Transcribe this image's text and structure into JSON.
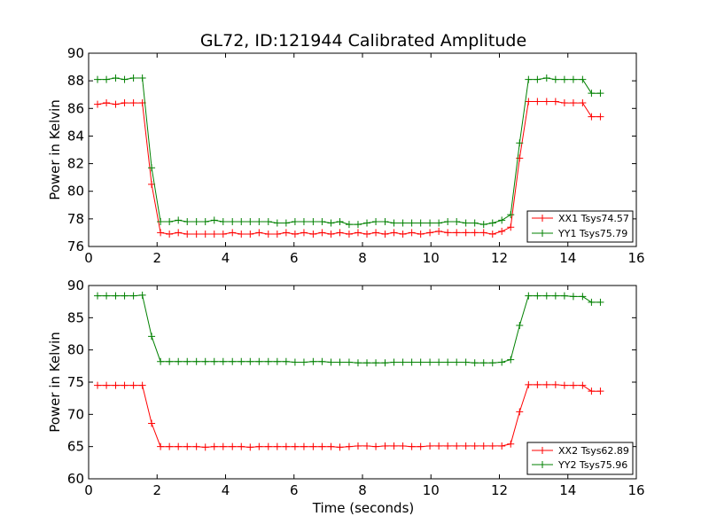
{
  "chart_data": {
    "title": "GL72, ID:121944 Calibrated Amplitude",
    "charts": [
      {
        "type": "line",
        "ylabel": "Power in Kelvin",
        "xlim": [
          0,
          16
        ],
        "ylim": [
          76,
          90
        ],
        "xticks": [
          "0",
          "2",
          "4",
          "6",
          "8",
          "10",
          "12",
          "14",
          "16"
        ],
        "yticks": [
          "76",
          "78",
          "80",
          "82",
          "84",
          "86",
          "88",
          "90"
        ],
        "grid": false,
        "legend_position": "lower-right",
        "x": [
          0.26,
          0.52,
          0.79,
          1.05,
          1.31,
          1.57,
          1.84,
          2.1,
          2.36,
          2.62,
          2.88,
          3.15,
          3.41,
          3.67,
          3.93,
          4.2,
          4.46,
          4.72,
          4.98,
          5.25,
          5.51,
          5.77,
          6.03,
          6.29,
          6.56,
          6.82,
          7.08,
          7.34,
          7.61,
          7.87,
          8.13,
          8.39,
          8.66,
          8.92,
          9.18,
          9.44,
          9.7,
          9.97,
          10.23,
          10.49,
          10.75,
          11.02,
          11.28,
          11.54,
          11.8,
          12.07,
          12.33,
          12.59,
          12.85,
          13.11,
          13.38,
          13.64,
          13.9,
          14.16,
          14.43,
          14.69,
          14.95
        ],
        "series": [
          {
            "name": "XX1 Tsys74.57",
            "color": "#ff0000",
            "values": [
              86.3,
              86.4,
              86.3,
              86.4,
              86.4,
              86.4,
              80.5,
              77.0,
              76.9,
              77.0,
              76.9,
              76.9,
              76.9,
              76.9,
              76.9,
              77.0,
              76.9,
              76.9,
              77.0,
              76.9,
              76.9,
              77.0,
              76.9,
              77.0,
              76.9,
              77.0,
              76.9,
              77.0,
              76.9,
              77.0,
              76.9,
              77.0,
              76.9,
              77.0,
              76.9,
              77.0,
              76.9,
              77.0,
              77.1,
              77.0,
              77.0,
              77.0,
              77.0,
              77.0,
              76.9,
              77.1,
              77.4,
              82.4,
              86.5,
              86.5,
              86.5,
              86.5,
              86.4,
              86.4,
              86.4,
              85.4,
              85.4
            ]
          },
          {
            "name": "YY1 Tsys75.79",
            "color": "#008000",
            "values": [
              88.1,
              88.1,
              88.2,
              88.1,
              88.2,
              88.2,
              81.7,
              77.8,
              77.8,
              77.9,
              77.8,
              77.8,
              77.8,
              77.9,
              77.8,
              77.8,
              77.8,
              77.8,
              77.8,
              77.8,
              77.7,
              77.7,
              77.8,
              77.8,
              77.8,
              77.8,
              77.7,
              77.8,
              77.6,
              77.6,
              77.7,
              77.8,
              77.8,
              77.7,
              77.7,
              77.7,
              77.7,
              77.7,
              77.7,
              77.8,
              77.8,
              77.7,
              77.7,
              77.6,
              77.7,
              77.9,
              78.3,
              83.5,
              88.1,
              88.1,
              88.2,
              88.1,
              88.1,
              88.1,
              88.1,
              87.1,
              87.1
            ]
          }
        ]
      },
      {
        "type": "line",
        "ylabel": "Power in Kelvin",
        "xlabel": "Time (seconds)",
        "xlim": [
          0,
          16
        ],
        "ylim": [
          60,
          90
        ],
        "xticks": [
          "0",
          "2",
          "4",
          "6",
          "8",
          "10",
          "12",
          "14",
          "16"
        ],
        "yticks": [
          "60",
          "65",
          "70",
          "75",
          "80",
          "85",
          "90"
        ],
        "grid": false,
        "legend_position": "lower-right",
        "x": [
          0.26,
          0.52,
          0.79,
          1.05,
          1.31,
          1.57,
          1.84,
          2.1,
          2.36,
          2.62,
          2.88,
          3.15,
          3.41,
          3.67,
          3.93,
          4.2,
          4.46,
          4.72,
          4.98,
          5.25,
          5.51,
          5.77,
          6.03,
          6.29,
          6.56,
          6.82,
          7.08,
          7.34,
          7.61,
          7.87,
          8.13,
          8.39,
          8.66,
          8.92,
          9.18,
          9.44,
          9.7,
          9.97,
          10.23,
          10.49,
          10.75,
          11.02,
          11.28,
          11.54,
          11.8,
          12.07,
          12.33,
          12.59,
          12.85,
          13.11,
          13.38,
          13.64,
          13.9,
          14.16,
          14.43,
          14.69,
          14.95
        ],
        "series": [
          {
            "name": "XX2 Tsys62.89",
            "color": "#ff0000",
            "values": [
              74.5,
              74.5,
              74.5,
              74.5,
              74.5,
              74.5,
              68.6,
              65.0,
              65.0,
              65.0,
              65.0,
              65.0,
              64.9,
              65.0,
              65.0,
              65.0,
              65.0,
              64.9,
              65.0,
              65.0,
              65.0,
              65.0,
              65.0,
              65.0,
              65.0,
              65.0,
              65.0,
              64.9,
              65.0,
              65.1,
              65.1,
              65.0,
              65.1,
              65.1,
              65.1,
              65.0,
              65.0,
              65.1,
              65.1,
              65.1,
              65.1,
              65.1,
              65.1,
              65.1,
              65.1,
              65.1,
              65.4,
              70.4,
              74.6,
              74.6,
              74.6,
              74.6,
              74.5,
              74.5,
              74.5,
              73.6,
              73.6
            ]
          },
          {
            "name": "YY2 Tsys75.96",
            "color": "#008000",
            "values": [
              88.4,
              88.4,
              88.4,
              88.4,
              88.4,
              88.5,
              82.1,
              78.2,
              78.2,
              78.2,
              78.2,
              78.2,
              78.2,
              78.2,
              78.2,
              78.2,
              78.2,
              78.2,
              78.2,
              78.2,
              78.2,
              78.2,
              78.1,
              78.1,
              78.2,
              78.2,
              78.1,
              78.1,
              78.1,
              78.0,
              78.0,
              78.0,
              78.0,
              78.1,
              78.1,
              78.1,
              78.1,
              78.1,
              78.1,
              78.1,
              78.1,
              78.1,
              78.0,
              78.0,
              78.0,
              78.1,
              78.5,
              83.8,
              88.4,
              88.4,
              88.4,
              88.4,
              88.4,
              88.3,
              88.3,
              87.4,
              87.4
            ]
          }
        ]
      }
    ]
  }
}
